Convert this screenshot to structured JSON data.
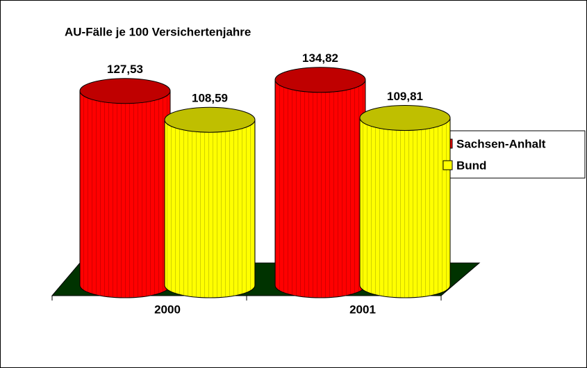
{
  "chart_data": {
    "type": "bar3d",
    "title": "AU-Fälle je 100 Versichertenjahre",
    "categories": [
      "2000",
      "2001"
    ],
    "series": [
      {
        "name": "Sachsen-Anhalt",
        "color": "#ff0000",
        "values": [
          127.53,
          134.82
        ],
        "value_labels": [
          "127,53",
          "134,82"
        ]
      },
      {
        "name": "Bund",
        "color": "#ffff00",
        "values": [
          108.59,
          109.81
        ],
        "value_labels": [
          "108,59",
          "109,81"
        ]
      }
    ],
    "legend": "right"
  }
}
